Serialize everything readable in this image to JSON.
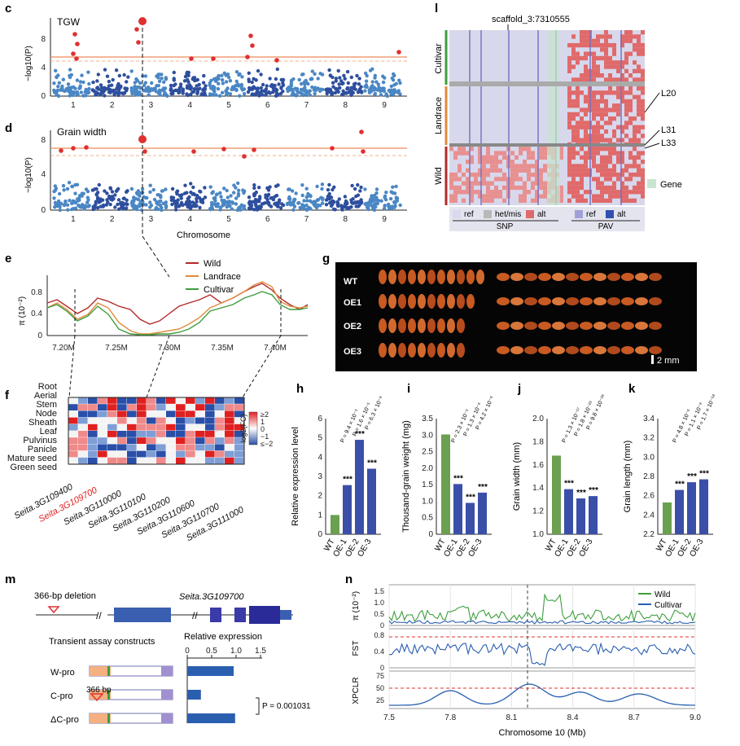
{
  "panels": {
    "c": {
      "letter": "c",
      "title": "TGW",
      "ylabel": "−log10(P)",
      "yticks": [
        "0",
        "4",
        "8"
      ],
      "xticks": [
        "1",
        "2",
        "3",
        "4",
        "5",
        "6",
        "7",
        "8",
        "9"
      ]
    },
    "d": {
      "letter": "d",
      "title": "Grain width",
      "ylabel": "−log10(P)",
      "yticks": [
        "0",
        "4",
        "8"
      ],
      "xticks": [
        "1",
        "2",
        "3",
        "4",
        "5",
        "6",
        "7",
        "8",
        "9"
      ],
      "xlabel": "Chromosome"
    },
    "e": {
      "letter": "e",
      "ylabel": "π (10⁻²)",
      "yticks": [
        "0",
        "0.4",
        "0.8"
      ],
      "xticks": [
        "7.20M",
        "7.25M",
        "7.30M",
        "7.35M",
        "7.40M"
      ],
      "legend": [
        "Wild",
        "Landrace",
        "Cultivar"
      ],
      "colors": {
        "wild": "#b22a2a",
        "landrace": "#e08a3c",
        "cultivar": "#3e9e3e"
      }
    },
    "f": {
      "letter": "f",
      "rows": [
        "Root",
        "Aerial",
        "Stem",
        "Node",
        "Sheath",
        "Leaf",
        "Pulvinus",
        "Panicle",
        "Mature seed",
        "Green seed"
      ],
      "genes": [
        "Seita.3G109400",
        "Seita.3G109700",
        "Seita.3G110000",
        "Seita.3G110100",
        "Seita.3G110200",
        "Seita.3G110600",
        "Seita.3G110700",
        "Seita.3G111000"
      ],
      "legend_title": "log2(FC)",
      "legend_ticks": [
        "≥2",
        "1",
        "0",
        "−1",
        "≤−2"
      ]
    },
    "g": {
      "letter": "g",
      "rows": [
        "WT",
        "OE1",
        "OE2",
        "OE3"
      ],
      "scale": "2 mm"
    },
    "h": {
      "letter": "h",
      "ylabel": "Relative expression level",
      "yticks": [
        "0",
        "1",
        "2",
        "3",
        "4",
        "5",
        "6"
      ],
      "cats": [
        "WT",
        "OE-1",
        "OE-2",
        "OE-3"
      ],
      "pvals": [
        "P = 9.4 × 10⁻⁵",
        "P = 1.6 × 10⁻⁵",
        "P = 6.3 × 10⁻⁶"
      ]
    },
    "i": {
      "letter": "i",
      "ylabel": "Thousand-grain weight (mg)",
      "yticks": [
        "0",
        "0.5",
        "1.0",
        "1.5",
        "2.0",
        "2.5",
        "3.0",
        "3.5"
      ],
      "cats": [
        "WT",
        "OE-1",
        "OE-2",
        "OE-3"
      ],
      "pvals": [
        "P = 2.3 × 10⁻⁵",
        "P = 1.3 × 10⁻⁶",
        "P = 4.2 × 10⁻⁶"
      ]
    },
    "j": {
      "letter": "j",
      "ylabel": "Grain width (mm)",
      "yticks": [
        "1.0",
        "1.2",
        "1.4",
        "1.6",
        "1.8",
        "2.0"
      ],
      "cats": [
        "WT",
        "OE-1",
        "OE-2",
        "OE-3"
      ],
      "pvals": [
        "P = 1.3 × 10⁻¹⁷",
        "P = 1.8 × 10⁻²⁵",
        "P = 9.8 × 10⁻²⁶"
      ]
    },
    "k": {
      "letter": "k",
      "ylabel": "Grain length (mm)",
      "yticks": [
        "2.2",
        "2.4",
        "2.6",
        "2.8",
        "3.0",
        "3.2",
        "3.4"
      ],
      "cats": [
        "WT",
        "OE-1",
        "OE-2",
        "OE-3"
      ],
      "pvals": [
        "P = 4.8 × 10⁻⁶",
        "P = 1.1 × 10⁻⁹",
        "P = 1.7 × 10⁻¹⁸"
      ]
    },
    "l": {
      "letter": "l",
      "snp": "scaffold_3:7310555",
      "groups": [
        "Cultivar",
        "Landrace",
        "Wild"
      ],
      "markers": [
        "L20",
        "L31",
        "L33"
      ],
      "gene": "Gene",
      "legend": {
        "snp_title": "SNP",
        "pav_title": "PAV",
        "snp": [
          "ref",
          "het/mis",
          "alt"
        ],
        "pav": [
          "ref",
          "alt"
        ]
      }
    },
    "m": {
      "letter": "m",
      "deletion": "366-bp deletion",
      "gene": "Seita.3G109700",
      "constructs_title": "Transient assay constructs",
      "expr_title": "Relative expression",
      "xticks": [
        "0",
        "0.5",
        "1.0",
        "1.5"
      ],
      "constructs": [
        "W-pro",
        "C-pro",
        "ΔC-pro"
      ],
      "bp": "366 bp",
      "pval": "P = 0.001031"
    },
    "n": {
      "letter": "n",
      "xlabel": "Chromosome 10 (Mb)",
      "xticks": [
        "7.5",
        "7.8",
        "8.1",
        "8.4",
        "8.7",
        "9.0"
      ],
      "pi_label": "π (10⁻²)",
      "pi_ticks": [
        "0",
        "0.5",
        "1.0",
        "1.5"
      ],
      "fst_label": "FST",
      "fst_ticks": [
        "0",
        "0.4",
        "0.8"
      ],
      "xpclr_label": "XPCLR",
      "xpclr_ticks": [
        "25",
        "50",
        "75"
      ],
      "legend": [
        "Wild",
        "Cultivar"
      ]
    }
  },
  "chart_data": [
    {
      "type": "bar",
      "title": "",
      "ylabel": "Relative expression level",
      "categories": [
        "WT",
        "OE-1",
        "OE-2",
        "OE-3"
      ],
      "values": [
        1.0,
        2.55,
        4.9,
        3.4
      ],
      "ylim": [
        0,
        6
      ]
    },
    {
      "type": "bar",
      "title": "",
      "ylabel": "Thousand-grain weight (mg)",
      "categories": [
        "WT",
        "OE-1",
        "OE-2",
        "OE-3"
      ],
      "values": [
        3.02,
        1.52,
        0.95,
        1.26
      ],
      "ylim": [
        0,
        3.5
      ]
    },
    {
      "type": "bar",
      "title": "",
      "ylabel": "Grain width (mm)",
      "categories": [
        "WT",
        "OE-1",
        "OE-2",
        "OE-3"
      ],
      "values": [
        1.68,
        1.39,
        1.31,
        1.33
      ],
      "ylim": [
        1.0,
        2.0
      ]
    },
    {
      "type": "bar",
      "title": "",
      "ylabel": "Grain length (mm)",
      "categories": [
        "WT",
        "OE-1",
        "OE-2",
        "OE-3"
      ],
      "values": [
        2.53,
        2.66,
        2.74,
        2.77
      ],
      "ylim": [
        2.2,
        3.4
      ]
    },
    {
      "type": "bar",
      "title": "",
      "xlabel": "Relative expression",
      "categories": [
        "W-pro",
        "C-pro",
        "ΔC-pro"
      ],
      "values": [
        0.95,
        0.28,
        0.98
      ],
      "xlim": [
        0,
        1.5
      ]
    }
  ]
}
